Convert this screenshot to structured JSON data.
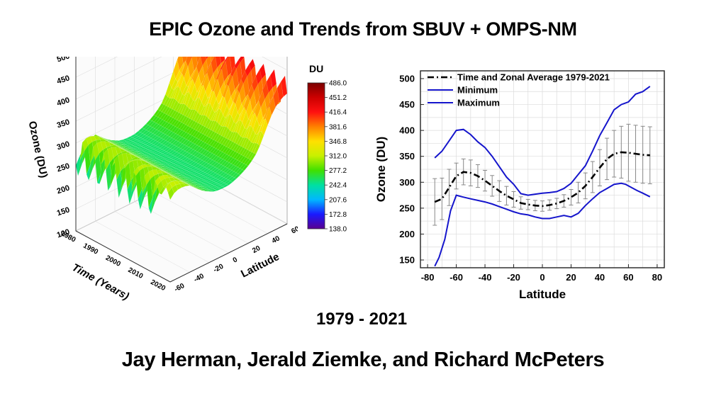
{
  "page": {
    "title": "EPIC Ozone and Trends from SBUV + OMPS-NM",
    "years": "1979 - 2021",
    "authors": "Jay Herman, Jerald Ziemke, and Richard McPeters"
  },
  "colors": {
    "mean_line": "#000000",
    "min_max_lines": "#1515cc",
    "error_bars": "#888888",
    "colormap": [
      "#5a0090",
      "#1a1aff",
      "#00b8ff",
      "#00e0a0",
      "#40e000",
      "#c8f000",
      "#ffe000",
      "#ff8000",
      "#ff1010",
      "#cc0000",
      "#7a0000"
    ]
  },
  "colorbar": {
    "title": "DU",
    "ticks": [
      "486.0",
      "451.2",
      "416.4",
      "381.6",
      "346.8",
      "312.0",
      "277.2",
      "242.4",
      "207.6",
      "172.8",
      "138.0"
    ]
  },
  "surface": {
    "z_axis_label": "Ozone (DU)",
    "z_ticks": [
      "500",
      "450",
      "400",
      "350",
      "300",
      "250",
      "200",
      "150",
      "100"
    ],
    "time_axis_label": "Time (Years)",
    "time_ticks": [
      "1980",
      "1990",
      "2000",
      "2010",
      "2020"
    ],
    "lat_axis_label": "Latitude",
    "lat_ticks": [
      "-60",
      "-40",
      "-20",
      "0",
      "20",
      "40",
      "60"
    ]
  },
  "chart_data": {
    "type": "line",
    "title": "",
    "xlabel": "Latitude",
    "ylabel": "Ozone (DU)",
    "xlim": [
      -85,
      85
    ],
    "ylim": [
      135,
      515
    ],
    "x_ticks": [
      -80,
      -60,
      -40,
      -20,
      0,
      20,
      40,
      60,
      80
    ],
    "y_ticks": [
      150,
      200,
      250,
      300,
      350,
      400,
      450,
      500
    ],
    "grid": true,
    "legend_position": "top-left",
    "series": [
      {
        "name": "Time and Zonal Average 1979-2021",
        "style": "dash-dot",
        "x": [
          -75,
          -70,
          -65,
          -60,
          -55,
          -50,
          -45,
          -40,
          -35,
          -30,
          -25,
          -20,
          -15,
          -10,
          -5,
          0,
          5,
          10,
          15,
          20,
          25,
          30,
          35,
          40,
          45,
          50,
          55,
          60,
          65,
          70,
          75
        ],
        "values": [
          262,
          268,
          290,
          312,
          320,
          318,
          312,
          303,
          293,
          283,
          274,
          267,
          260,
          257,
          255,
          254,
          256,
          259,
          264,
          271,
          280,
          293,
          310,
          328,
          345,
          355,
          358,
          357,
          355,
          353,
          352
        ],
        "error": [
          45,
          40,
          35,
          25,
          25,
          25,
          22,
          20,
          20,
          20,
          18,
          15,
          12,
          10,
          10,
          10,
          10,
          10,
          12,
          15,
          20,
          25,
          30,
          35,
          40,
          45,
          50,
          55,
          55,
          55,
          55
        ]
      },
      {
        "name": "Minimum",
        "x": [
          -75,
          -72,
          -68,
          -64,
          -60,
          -56,
          -50,
          -45,
          -40,
          -35,
          -30,
          -25,
          -20,
          -15,
          -10,
          -5,
          0,
          5,
          10,
          15,
          20,
          25,
          30,
          35,
          40,
          45,
          50,
          55,
          58,
          62,
          66,
          70,
          75
        ],
        "values": [
          138,
          155,
          190,
          245,
          275,
          272,
          268,
          265,
          262,
          258,
          253,
          248,
          243,
          239,
          237,
          233,
          230,
          230,
          233,
          236,
          233,
          240,
          255,
          268,
          280,
          288,
          296,
          298,
          296,
          290,
          284,
          279,
          272
        ]
      },
      {
        "name": "Maximum",
        "x": [
          -75,
          -70,
          -65,
          -60,
          -55,
          -50,
          -45,
          -40,
          -35,
          -30,
          -25,
          -20,
          -15,
          -10,
          -5,
          0,
          5,
          10,
          15,
          20,
          25,
          30,
          35,
          40,
          45,
          50,
          55,
          60,
          65,
          70,
          75
        ],
        "values": [
          347,
          360,
          380,
          400,
          402,
          392,
          378,
          367,
          350,
          330,
          310,
          296,
          278,
          275,
          277,
          279,
          280,
          282,
          288,
          298,
          315,
          332,
          360,
          390,
          415,
          440,
          450,
          455,
          470,
          475,
          485
        ]
      }
    ]
  }
}
